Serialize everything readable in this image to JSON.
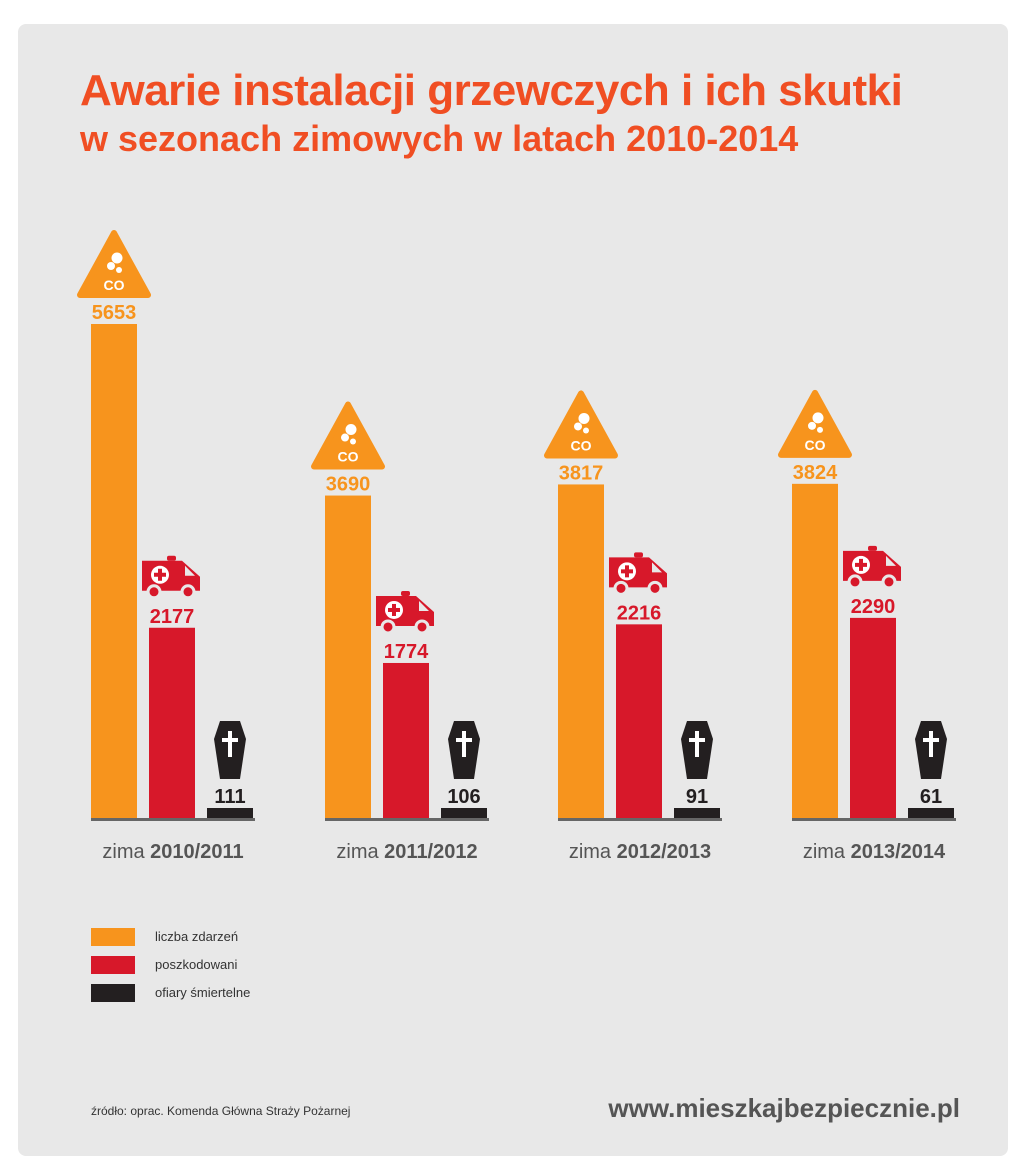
{
  "title": "Awarie instalacji grzewczych i ich skutki",
  "subtitle": "w sezonach zimowych w latach 2010-2014",
  "chart_data": {
    "type": "bar",
    "categories": [
      "zima 2010/2011",
      "zima 2011/2012",
      "zima 2012/2013",
      "zima 2013/2014"
    ],
    "category_labels": [
      {
        "prefix": "zima",
        "season": "2010/2011"
      },
      {
        "prefix": "zima",
        "season": "2011/2012"
      },
      {
        "prefix": "zima",
        "season": "2012/2013"
      },
      {
        "prefix": "zima",
        "season": "2013/2014"
      }
    ],
    "series": [
      {
        "name": "liczba zdarzeń",
        "values": [
          5653,
          3690,
          3817,
          3824
        ],
        "color": "#f7941d",
        "icon": "co-warning-icon"
      },
      {
        "name": "poszkodowani",
        "values": [
          2177,
          1774,
          2216,
          2290
        ],
        "color": "#d7182a",
        "icon": "ambulance-icon"
      },
      {
        "name": "ofiary śmiertelne",
        "values": [
          111,
          106,
          91,
          61
        ],
        "color": "#231f20",
        "icon": "coffin-icon"
      }
    ],
    "data_labels": true,
    "icon_text": "CO",
    "legend_position": "bottom-left",
    "grid": false
  },
  "legend": [
    {
      "label": "liczba zdarzeń",
      "color": "#f7941d"
    },
    {
      "label": "poszkodowani",
      "color": "#d7182a"
    },
    {
      "label": "ofiary śmiertelne",
      "color": "#231f20"
    }
  ],
  "source": "źródło: oprac. Komenda Główna Straży Pożarnej",
  "website": "www.mieszkajbezpiecznie.pl",
  "colors": {
    "accent": "#f04e23",
    "panel": "#e8e8e8",
    "baseline": "#666666",
    "axis_label": "#555555"
  }
}
